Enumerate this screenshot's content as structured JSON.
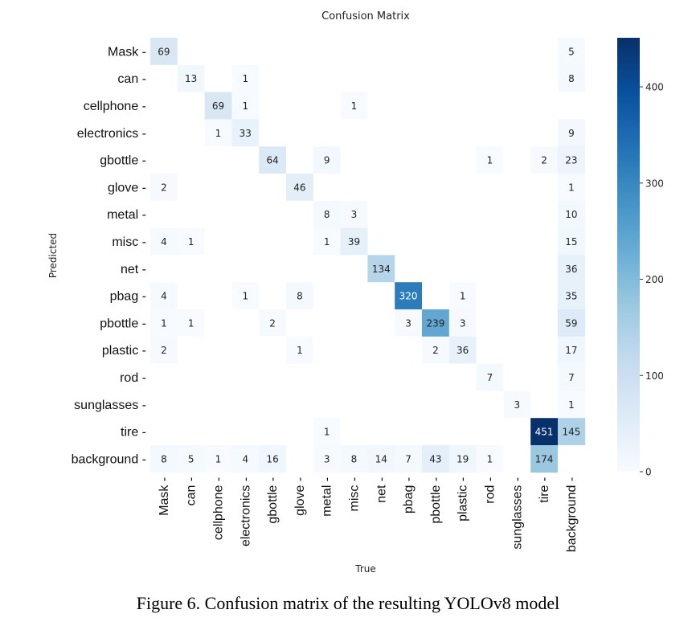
{
  "chart_data": {
    "type": "heatmap",
    "title": "Confusion Matrix",
    "xlabel": "True",
    "ylabel": "Predicted",
    "rows": [
      "Mask",
      "can",
      "cellphone",
      "electronics",
      "gbottle",
      "glove",
      "metal",
      "misc",
      "net",
      "pbag",
      "pbottle",
      "plastic",
      "rod",
      "sunglasses",
      "tire",
      "background"
    ],
    "columns": [
      "Mask",
      "can",
      "cellphone",
      "electronics",
      "gbottle",
      "glove",
      "metal",
      "misc",
      "net",
      "pbag",
      "pbottle",
      "plastic",
      "rod",
      "sunglasses",
      "tire",
      "background"
    ],
    "values": [
      [
        69,
        0,
        0,
        0,
        0,
        0,
        0,
        0,
        0,
        0,
        0,
        0,
        0,
        0,
        0,
        5
      ],
      [
        0,
        13,
        0,
        1,
        0,
        0,
        0,
        0,
        0,
        0,
        0,
        0,
        0,
        0,
        0,
        8
      ],
      [
        0,
        0,
        69,
        1,
        0,
        0,
        0,
        1,
        0,
        0,
        0,
        0,
        0,
        0,
        0,
        0
      ],
      [
        0,
        0,
        1,
        33,
        0,
        0,
        0,
        0,
        0,
        0,
        0,
        0,
        0,
        0,
        0,
        9
      ],
      [
        0,
        0,
        0,
        0,
        64,
        0,
        9,
        0,
        0,
        0,
        0,
        0,
        1,
        0,
        2,
        23
      ],
      [
        2,
        0,
        0,
        0,
        0,
        46,
        0,
        0,
        0,
        0,
        0,
        0,
        0,
        0,
        0,
        1
      ],
      [
        0,
        0,
        0,
        0,
        0,
        0,
        8,
        3,
        0,
        0,
        0,
        0,
        0,
        0,
        0,
        10
      ],
      [
        4,
        1,
        0,
        0,
        0,
        0,
        1,
        39,
        0,
        0,
        0,
        0,
        0,
        0,
        0,
        15
      ],
      [
        0,
        0,
        0,
        0,
        0,
        0,
        0,
        0,
        134,
        0,
        0,
        0,
        0,
        0,
        0,
        36
      ],
      [
        4,
        0,
        0,
        1,
        0,
        8,
        0,
        0,
        0,
        320,
        0,
        1,
        0,
        0,
        0,
        35
      ],
      [
        1,
        1,
        0,
        0,
        2,
        0,
        0,
        0,
        0,
        3,
        239,
        3,
        0,
        0,
        0,
        59
      ],
      [
        2,
        0,
        0,
        0,
        0,
        1,
        0,
        0,
        0,
        0,
        2,
        36,
        0,
        0,
        0,
        17
      ],
      [
        0,
        0,
        0,
        0,
        0,
        0,
        0,
        0,
        0,
        0,
        0,
        0,
        7,
        0,
        0,
        7
      ],
      [
        0,
        0,
        0,
        0,
        0,
        0,
        0,
        0,
        0,
        0,
        0,
        0,
        0,
        3,
        0,
        1
      ],
      [
        0,
        0,
        0,
        0,
        0,
        0,
        1,
        0,
        0,
        0,
        0,
        0,
        0,
        0,
        451,
        145
      ],
      [
        8,
        5,
        1,
        4,
        16,
        0,
        3,
        8,
        14,
        7,
        43,
        19,
        1,
        0,
        174,
        0
      ]
    ],
    "vmin": 0,
    "vmax": 451,
    "colorbar_ticks": [
      0,
      100,
      200,
      300,
      400
    ],
    "colormap": [
      "#f7fbff",
      "#deebf7",
      "#c6dbef",
      "#9ecae1",
      "#6baed6",
      "#4292c6",
      "#2171b5",
      "#08519c",
      "#08306b"
    ]
  },
  "caption": "Figure 6.  Confusion matrix of the resulting YOLOv8 model"
}
